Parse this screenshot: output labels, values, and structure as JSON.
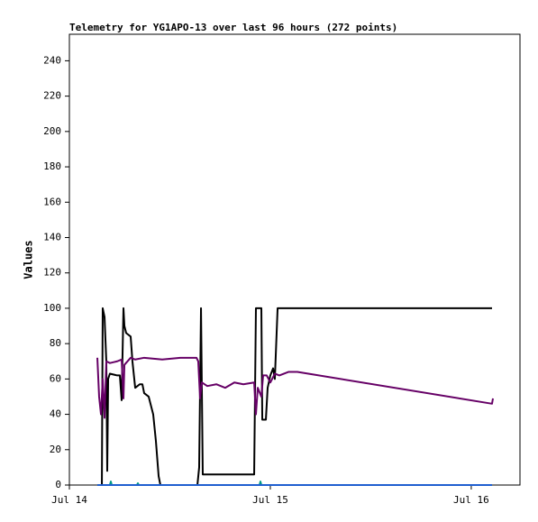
{
  "chart_data": {
    "type": "line",
    "title": "Telemetry for YG1APO-13 over last 96 hours (272 points)",
    "y_label": "Values",
    "xlim": [
      0,
      53.82
    ],
    "ylim": [
      0,
      255
    ],
    "xticks": [
      {
        "value": 0,
        "label": "Jul 14"
      },
      {
        "value": 24,
        "label": "Jul 15"
      },
      {
        "value": 48,
        "label": "Jul 16"
      }
    ],
    "yticks": [
      0,
      20,
      40,
      60,
      80,
      100,
      120,
      140,
      160,
      180,
      200,
      220,
      240
    ],
    "grid": false,
    "series": [
      {
        "color": "#000000",
        "x": [
          3.34,
          3.88,
          3.98,
          4.2,
          4.41,
          4.52,
          4.63,
          4.84,
          5.71,
          6.03,
          6.24,
          6.46,
          6.57,
          6.78,
          7.32,
          7.53,
          7.86,
          8.4,
          8.72,
          8.93,
          9.47,
          10.01,
          10.33,
          10.66,
          10.87,
          15.29,
          15.5,
          15.72,
          15.93,
          22.07,
          22.28,
          22.93,
          23.04,
          23.47,
          23.68,
          24.0,
          24.33,
          24.54,
          24.87,
          50.48
        ],
        "values": [
          0,
          0,
          100,
          95,
          70,
          8,
          60,
          63,
          62,
          62,
          48,
          100,
          90,
          86,
          84,
          70,
          55,
          57,
          57,
          52,
          50,
          40,
          25,
          5,
          0,
          0,
          10,
          100,
          6,
          6,
          100,
          100,
          37,
          37,
          55,
          62,
          66,
          60,
          100,
          100
        ]
      },
      {
        "color": "#660066",
        "x": [
          3.34,
          3.55,
          3.77,
          3.98,
          4.2,
          4.41,
          4.84,
          5.71,
          6.24,
          6.46,
          6.57,
          7.32,
          7.86,
          8.93,
          11.09,
          13.24,
          15.18,
          15.39,
          15.61,
          15.82,
          16.47,
          17.55,
          18.62,
          19.7,
          20.78,
          22.07,
          22.28,
          22.5,
          22.93,
          23.14,
          23.57,
          24.0,
          24.54,
          25.08,
          26.16,
          27.23,
          50.48,
          50.59
        ],
        "values": [
          72,
          50,
          40,
          60,
          38,
          70,
          69,
          70,
          71,
          49,
          68,
          72,
          71,
          72,
          71,
          72,
          72,
          70,
          49,
          58,
          56,
          57,
          55,
          58,
          57,
          58,
          40,
          55,
          50,
          62,
          62,
          58,
          63,
          62,
          64,
          64,
          46,
          49
        ]
      },
      {
        "color": "#009988",
        "x": [
          3.34,
          4.84,
          4.95,
          5.06,
          8.07,
          8.18,
          8.29,
          22.71,
          22.82,
          22.93,
          50.48
        ],
        "values": [
          0,
          0,
          2,
          0,
          0,
          1,
          0,
          0,
          2,
          0,
          0
        ]
      },
      {
        "color": "#1f5fd0",
        "x": [
          3.34,
          50.48
        ],
        "values": [
          0,
          0
        ]
      }
    ]
  }
}
